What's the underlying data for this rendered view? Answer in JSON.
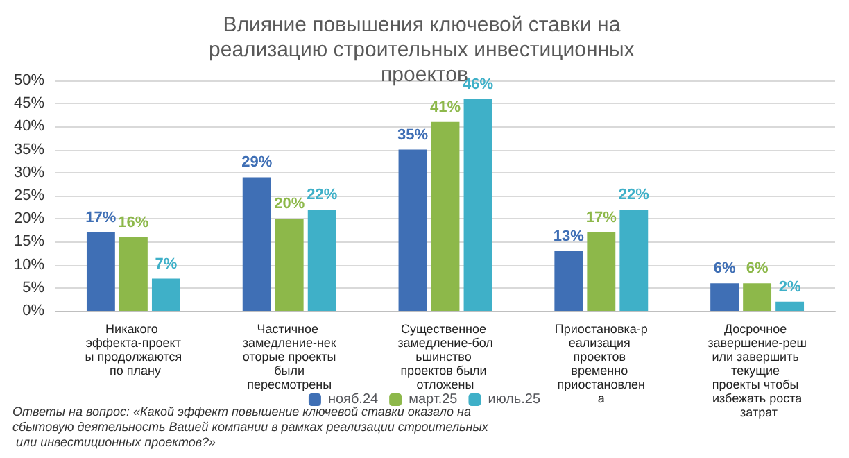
{
  "chart_data": {
    "type": "bar",
    "title": "Влияние повышения ключевой ставки на реализацию строительных инвестиционных проектов",
    "categories": [
      "Никакого эффекта-проекты продолжаются по плану",
      "Частичное замедление-некоторые проекты были пересмотрены",
      "Существенное замедление-большинство проектов были отложены",
      "Приостановка-реализация проектов временно приостановлена",
      "Досрочное завершение-решили завершить текущие проекты чтобы избежать роста затрат"
    ],
    "series": [
      {
        "name": "нояб.24",
        "color": "#3f6fb5",
        "values": [
          17,
          29,
          35,
          13,
          6
        ],
        "value_labels": [
          "17%",
          "29%",
          "35%",
          "13%",
          "6%"
        ]
      },
      {
        "name": "март.25",
        "color": "#8db84a",
        "values": [
          16,
          20,
          41,
          17,
          6
        ],
        "value_labels": [
          "16%",
          "20%",
          "41%",
          "17%",
          "6%"
        ]
      },
      {
        "name": "июль.25",
        "color": "#3fb0c8",
        "values": [
          7,
          22,
          46,
          22,
          2
        ],
        "value_labels": [
          "7%",
          "22%",
          "46%",
          "22%",
          "2%"
        ]
      }
    ],
    "ylim": [
      0,
      50
    ],
    "yticks": [
      {
        "value": 0,
        "label": "0%"
      },
      {
        "value": 5,
        "label": "5%"
      },
      {
        "value": 10,
        "label": "10%"
      },
      {
        "value": 15,
        "label": "15%"
      },
      {
        "value": 20,
        "label": "20%"
      },
      {
        "value": 25,
        "label": "25%"
      },
      {
        "value": 30,
        "label": "30%"
      },
      {
        "value": 35,
        "label": "35%"
      },
      {
        "value": 40,
        "label": "40%"
      },
      {
        "value": 45,
        "label": "45%"
      },
      {
        "value": 50,
        "label": "50%"
      }
    ],
    "grid": "y",
    "legend": "bottom",
    "annotations": [
      "Ответы на вопрос: «Какой эффект повышение ключевой ставки оказало на сбытовую деятельность Вашей компании в рамках реализации строительных или инвестиционных проектов?»"
    ]
  }
}
